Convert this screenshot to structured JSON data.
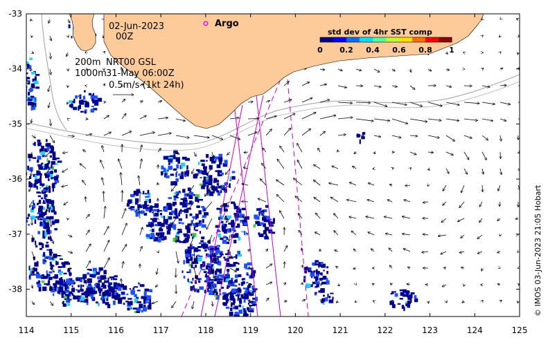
{
  "map": {
    "date": "02-Jun-2023",
    "hour": "00Z",
    "contour_shallow": "200m",
    "contour_deep": "1000m",
    "product": "NRT00 GSL",
    "product_time": "31-May 06:00Z",
    "scale_label": "0.5m/s (1kt 24h)",
    "argo_label": "Argo",
    "credit": "© IMOS 03-Jun-2023 21:05 Hobart",
    "colors": {
      "land": "#fdcb99",
      "argo": "#e800e8",
      "track": "#d000d0",
      "pixel_low": "#00008f",
      "pixel_mid": "#1e50ff",
      "pixel_cyan": "#1ed2ff",
      "pixel_green": "#50c850",
      "contour": "#a0a0a0"
    }
  },
  "colorbar": {
    "title": "std dev of 4hr SST comp",
    "ticks": [
      "0",
      "0.2",
      "0.4",
      "0.6",
      "0.8",
      "1"
    ],
    "colors": [
      "#00008f",
      "#0000ff",
      "#006fff",
      "#00dfff",
      "#50ff9f",
      "#bfff30",
      "#ffdf00",
      "#ff6f00",
      "#ff0000",
      "#8f0000"
    ]
  },
  "axes": {
    "x_ticks": [
      "114",
      "115",
      "116",
      "117",
      "118",
      "119",
      "120",
      "121",
      "122",
      "123",
      "124",
      "125"
    ],
    "y_ticks": [
      "-33",
      "-34",
      "-35",
      "-36",
      "-37",
      "-38"
    ]
  }
}
